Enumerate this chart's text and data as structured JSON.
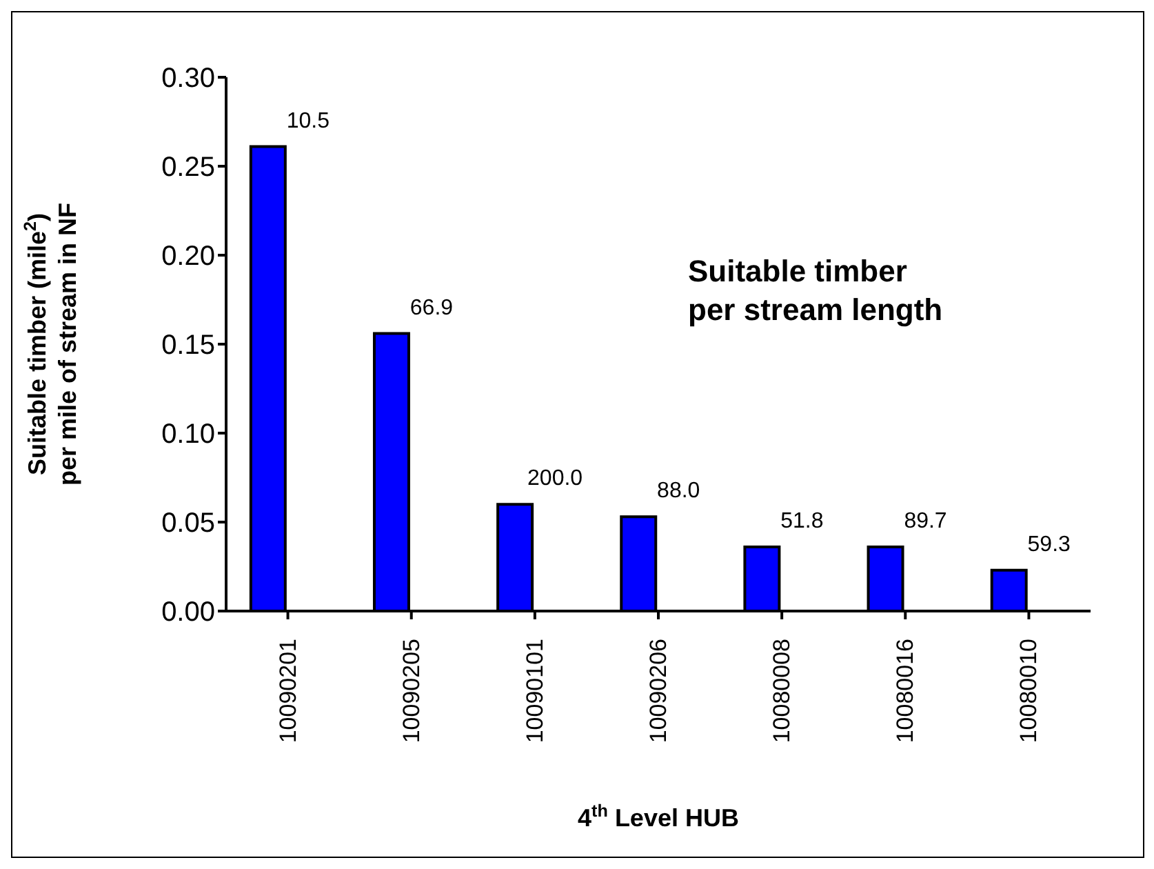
{
  "chart_data": {
    "type": "bar",
    "xlabel": "4$^{th}$ Level HUB",
    "ylabel": "Suitable timber (mile$^{2}$)\nper mile of stream in NF",
    "annotations": [
      "Suitable timber\nper stream length",
      {
        "text": "10.5",
        "x": "10090201",
        "y": 0.261
      },
      {
        "text": "66.9",
        "x": "10090205",
        "y": 0.156
      },
      {
        "text": "200.0",
        "x": "10090101",
        "y": 0.06
      },
      {
        "text": "88.0",
        "x": "10090206",
        "y": 0.053
      },
      {
        "text": "51.8",
        "x": "10080008",
        "y": 0.036
      },
      {
        "text": "89.7",
        "x": "10080016",
        "y": 0.036
      },
      {
        "text": "59.3",
        "x": "10080010",
        "y": 0.023
      }
    ],
    "categories": [
      "10090201",
      "10090205",
      "10090101",
      "10090206",
      "10080008",
      "10080016",
      "10080010"
    ],
    "values": [
      0.261,
      0.156,
      0.06,
      0.053,
      0.036,
      0.036,
      0.023
    ],
    "color": "#0000ff",
    "ylim": [
      0,
      0.3
    ],
    "yticks": [
      {
        "value": 0,
        "label": "0.00"
      },
      0.05,
      {
        "value": 0.1,
        "label": "0.10"
      },
      0.15,
      {
        "value": 0.2,
        "label": "0.20"
      },
      0.25,
      {
        "value": 0.3,
        "label": "0.30"
      }
    ],
    "grid": false,
    "legend": false
  }
}
